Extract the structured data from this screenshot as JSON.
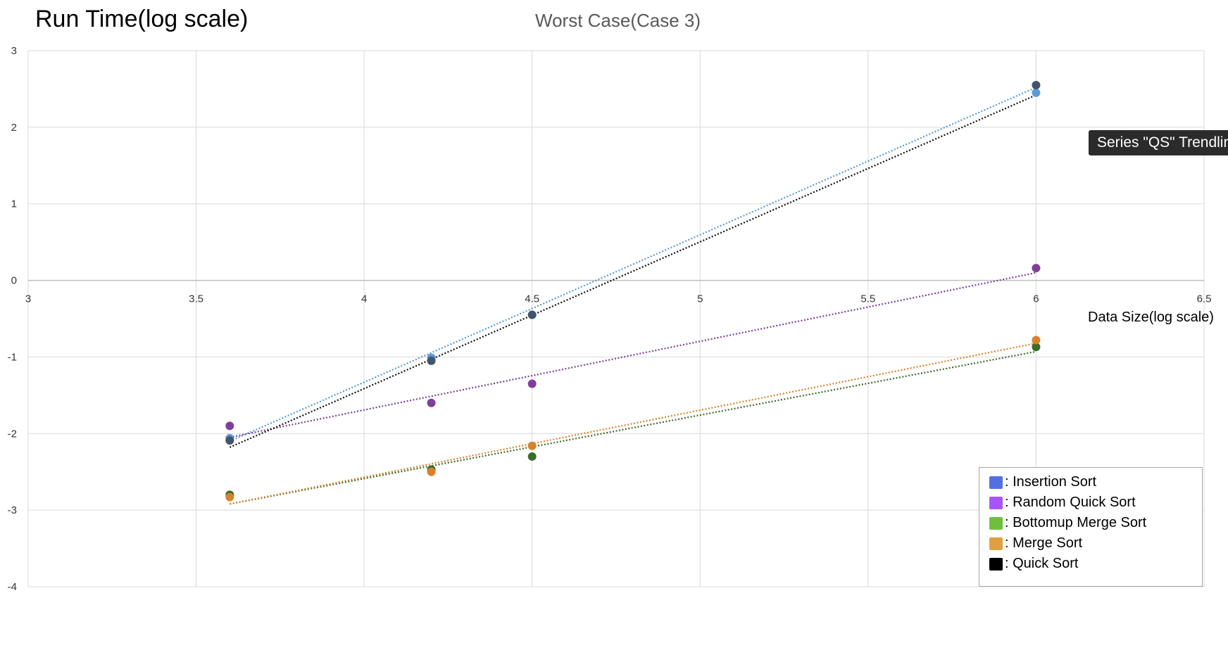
{
  "title": "Run Time(log scale)",
  "subtitle": "Worst Case(Case 3)",
  "tooltip": "Series \"QS\" Trendline",
  "chart_data": {
    "type": "scatter",
    "title": "Worst Case(Case 3)",
    "xlabel": "Data Size(log scale)",
    "ylabel": "Run Time(log scale)",
    "xlim": [
      3,
      6.5
    ],
    "ylim": [
      -4,
      3
    ],
    "xticks": [
      "3",
      "3.5",
      "4",
      "4.5",
      "5",
      "5.5",
      "6",
      "6.5"
    ],
    "yticks": [
      "3",
      "2",
      "1",
      "0",
      "-1",
      "-2",
      "-3",
      "-4"
    ],
    "grid": true,
    "legend_position": "bottom-right",
    "trendlines": "linear, dotted",
    "series": [
      {
        "name": ": Insertion Sort",
        "color": "#5b9bd5",
        "swatch": "#5470e0",
        "x": [
          3.6,
          4.2,
          4.5,
          6.0
        ],
        "y": [
          -2.06,
          -1.01,
          -0.45,
          2.45
        ],
        "trend": [
          [
            3.6,
            -2.1
          ],
          [
            6.0,
            2.52
          ]
        ]
      },
      {
        "name": ": Random Quick Sort",
        "color": "#7f3f98",
        "swatch": "#a855f7",
        "x": [
          3.6,
          4.2,
          4.5,
          6.0
        ],
        "y": [
          -1.9,
          -1.6,
          -1.35,
          0.16
        ],
        "trend": [
          [
            3.6,
            -2.05
          ],
          [
            6.0,
            0.1
          ]
        ]
      },
      {
        "name": ": Bottomup Merge Sort",
        "color": "#3a6b2a",
        "swatch": "#6fbf3f",
        "x": [
          3.6,
          4.2,
          4.5,
          6.0
        ],
        "y": [
          -2.8,
          -2.47,
          -2.3,
          -0.87
        ],
        "trend": [
          [
            3.6,
            -2.92
          ],
          [
            6.0,
            -0.93
          ]
        ]
      },
      {
        "name": ": Merge Sort",
        "color": "#d9822b",
        "swatch": "#e0a040",
        "x": [
          3.6,
          4.2,
          4.5,
          6.0
        ],
        "y": [
          -2.83,
          -2.5,
          -2.16,
          -0.78
        ],
        "trend": [
          [
            3.6,
            -2.92
          ],
          [
            6.0,
            -0.82
          ]
        ]
      },
      {
        "name": ": Quick Sort",
        "color": "#44546a",
        "swatch": "#000000",
        "x": [
          3.6,
          4.2,
          4.5,
          6.0
        ],
        "y": [
          -2.09,
          -1.05,
          -0.45,
          2.55
        ],
        "trend": [
          [
            3.6,
            -2.18
          ],
          [
            6.0,
            2.42
          ]
        ]
      }
    ]
  }
}
